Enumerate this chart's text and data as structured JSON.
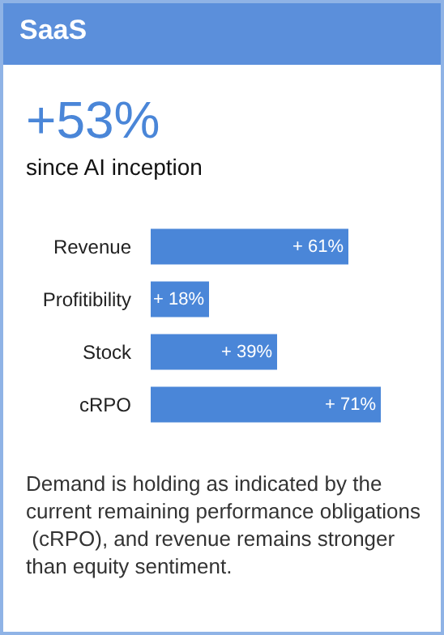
{
  "chart_data": {
    "type": "bar",
    "orientation": "horizontal",
    "title": "SaaS",
    "subtitle": "+53%",
    "annotations": [
      "since AI inception",
      "Demand is holding as indicated by the current remaining performance obligations (cRPO), and revenue remains stronger than equity sentiment."
    ],
    "categories": [
      "Revenue",
      "Profitibility",
      "Stock",
      "cRPO"
    ],
    "values": [
      61,
      18,
      39,
      71
    ],
    "value_labels": [
      "+ 61%",
      "+ 18%",
      "+ 39%",
      "+ 71%"
    ],
    "color": "#4a86d8"
  }
}
